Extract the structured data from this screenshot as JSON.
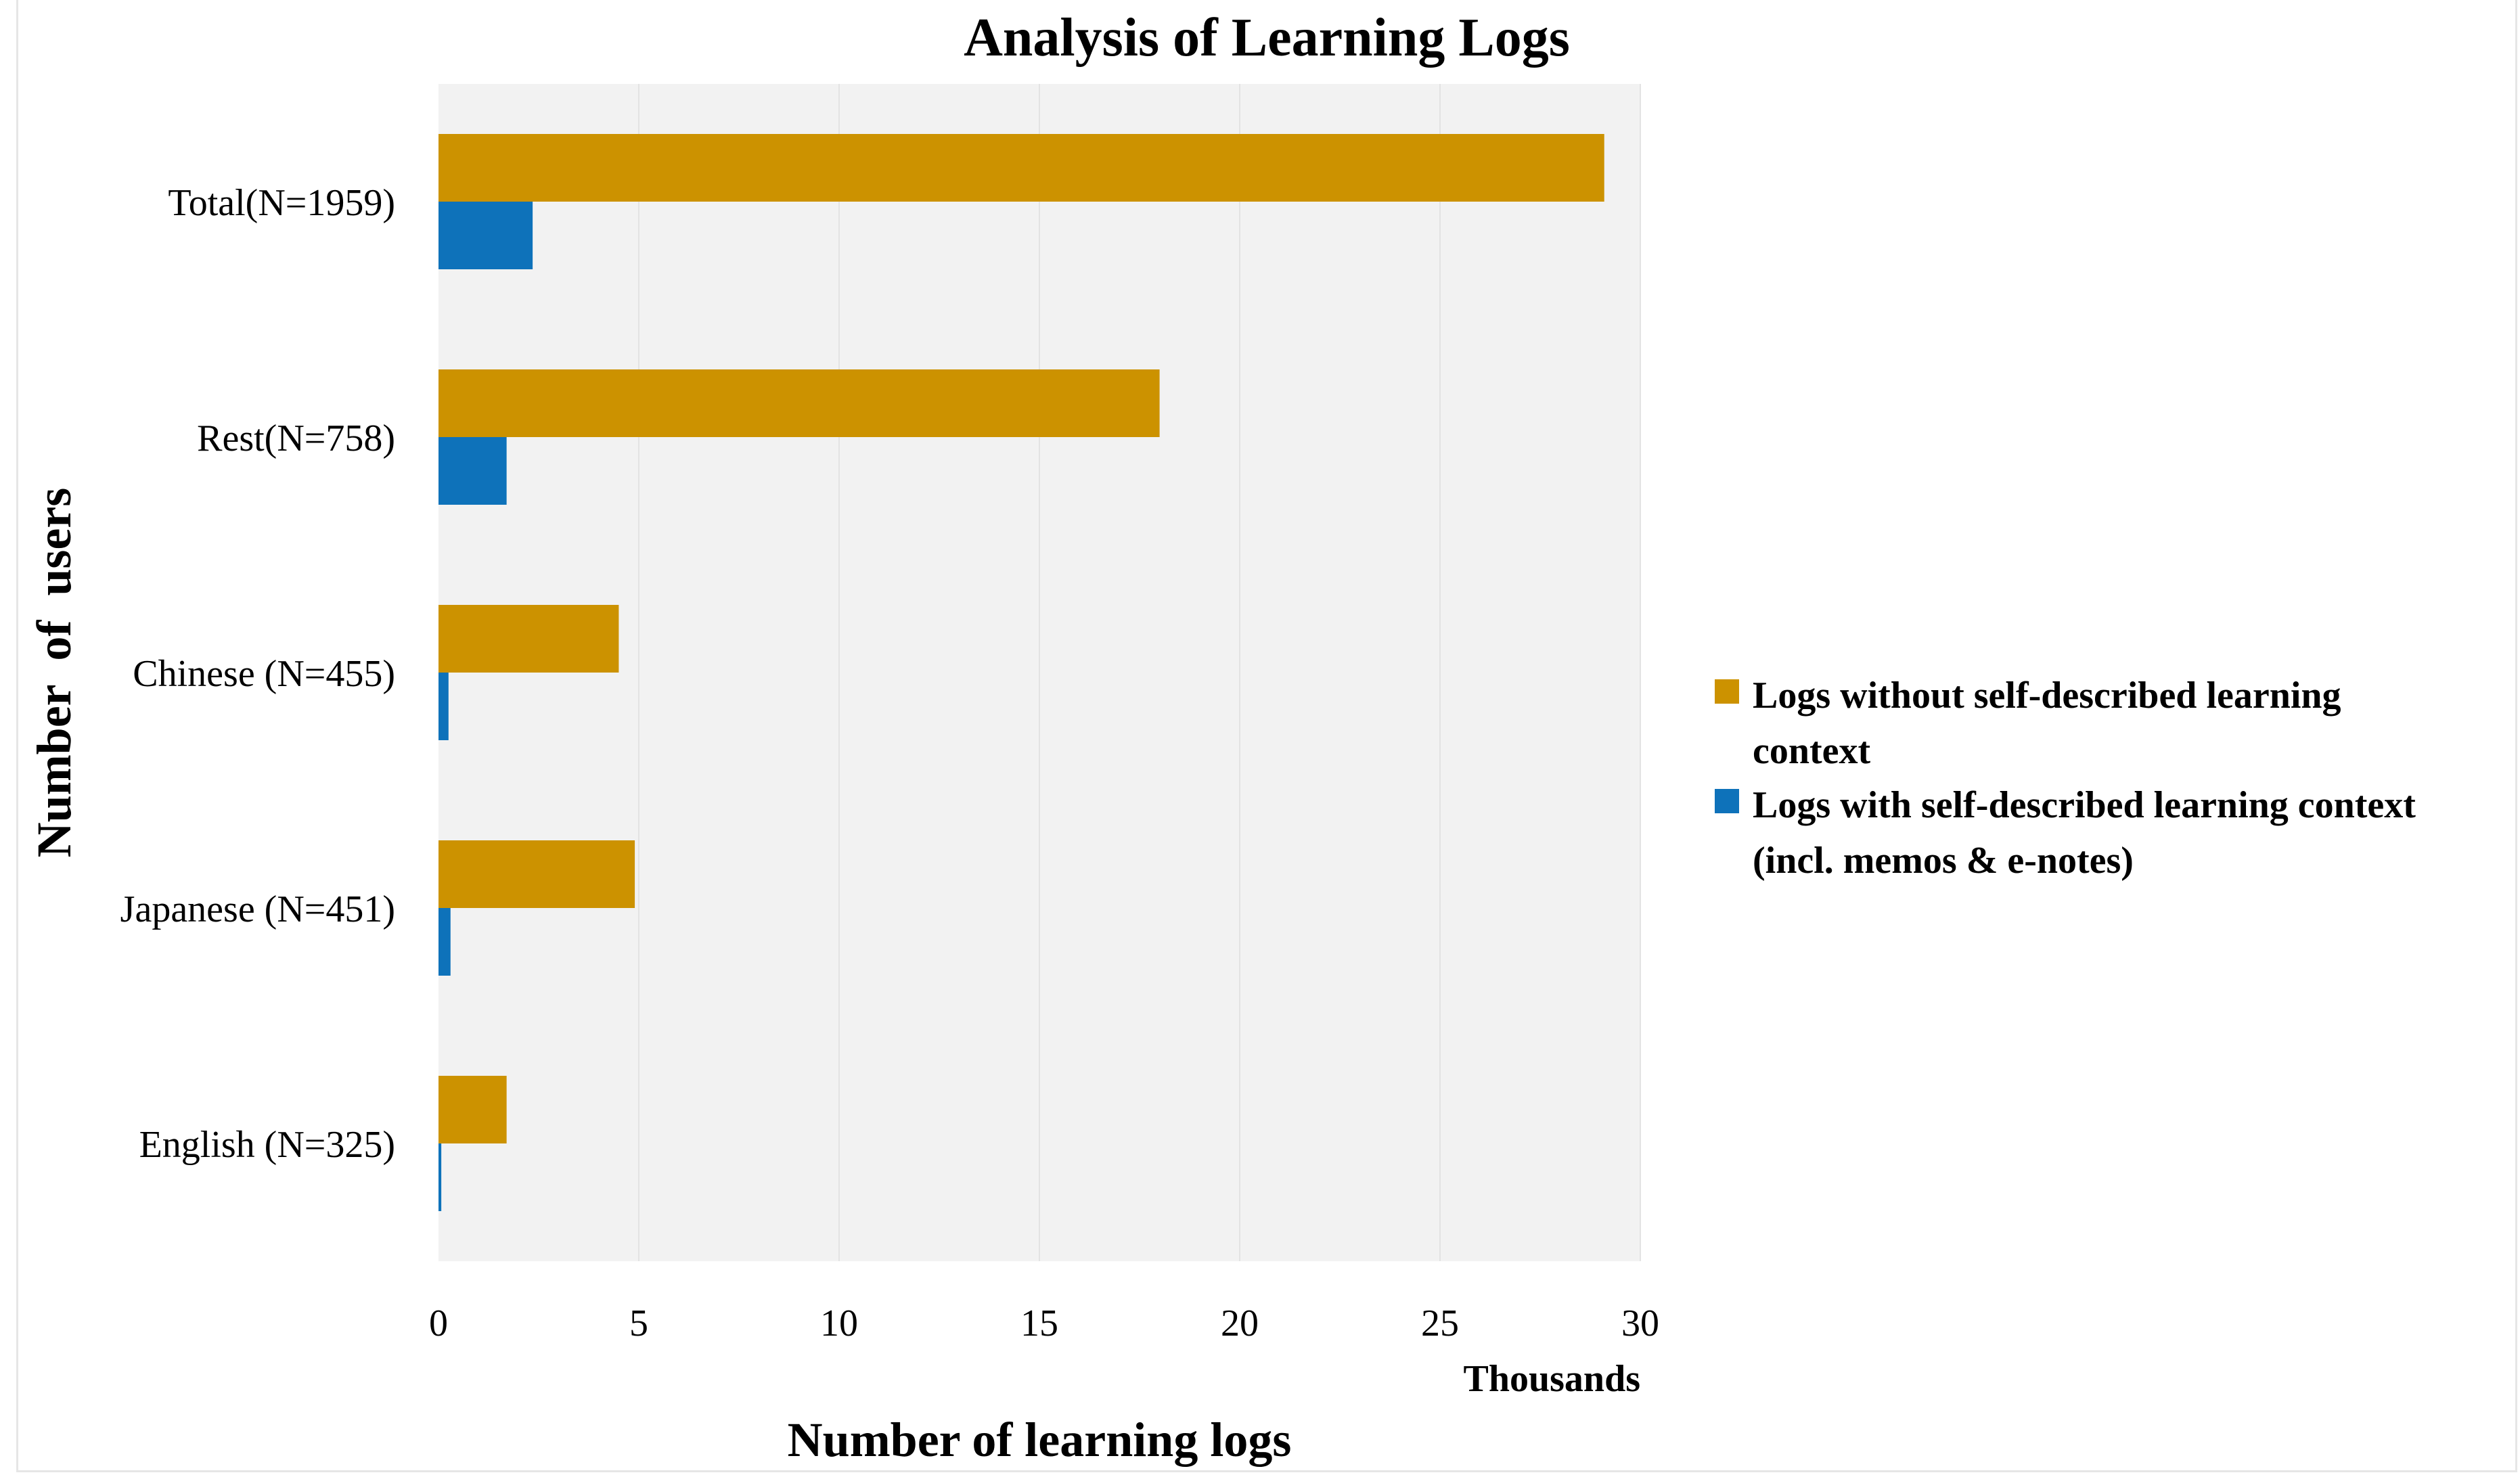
{
  "chart_data": {
    "type": "bar",
    "orientation": "horizontal",
    "title": "Analysis of Learning Logs",
    "xlabel": "Number of learning logs",
    "ylabel": "Number  of  users",
    "x_unit_label": "Thousands",
    "categories": [
      "Total(N=1959)",
      "Rest(N=758)",
      "Chinese (N=455)",
      "Japanese (N=451)",
      "English (N=325)"
    ],
    "series": [
      {
        "name": "Logs without self-described learning context",
        "color": "#CC9200",
        "values": [
          29.1,
          18.0,
          4.5,
          4.9,
          1.7
        ]
      },
      {
        "name": "Logs with self-described learning context (incl. memos & e-notes)",
        "color": "#0E72BA",
        "values": [
          2.35,
          1.7,
          0.25,
          0.3,
          0.07
        ]
      }
    ],
    "xlim": [
      0,
      30
    ],
    "xticks": [
      0,
      5,
      10,
      15,
      20,
      25,
      30
    ],
    "grid": "vertical",
    "legend": "right",
    "plot_background": "#F2F2F2"
  },
  "legend_lines": [
    [
      "Logs without self-described learning",
      "context"
    ],
    [
      "Logs with self-described learning context",
      "(incl. memos & e-notes)"
    ]
  ]
}
